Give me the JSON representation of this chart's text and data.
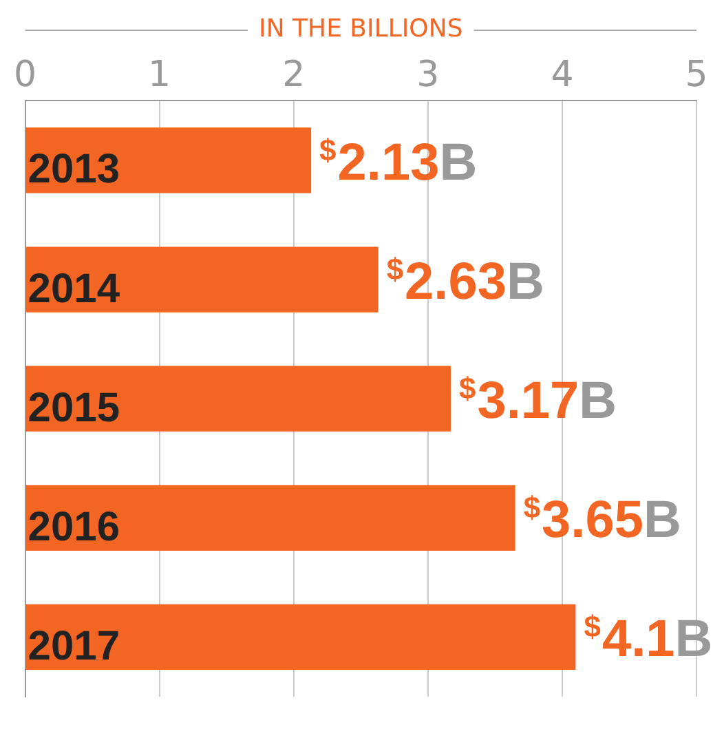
{
  "chart_data": {
    "type": "bar",
    "orientation": "horizontal",
    "title": "IN THE BILLIONS",
    "categories": [
      "2013",
      "2014",
      "2015",
      "2016",
      "2017"
    ],
    "values": [
      2.13,
      2.63,
      3.17,
      3.65,
      4.1
    ],
    "value_labels": [
      "$2.13B",
      "$2.63B",
      "$3.17B",
      "$3.65B",
      "$4.1B"
    ],
    "color": "#f26522",
    "xlim": [
      0,
      5
    ],
    "xticks": [
      0,
      1,
      2,
      3,
      4,
      5
    ],
    "grid": "x",
    "legend": false
  }
}
